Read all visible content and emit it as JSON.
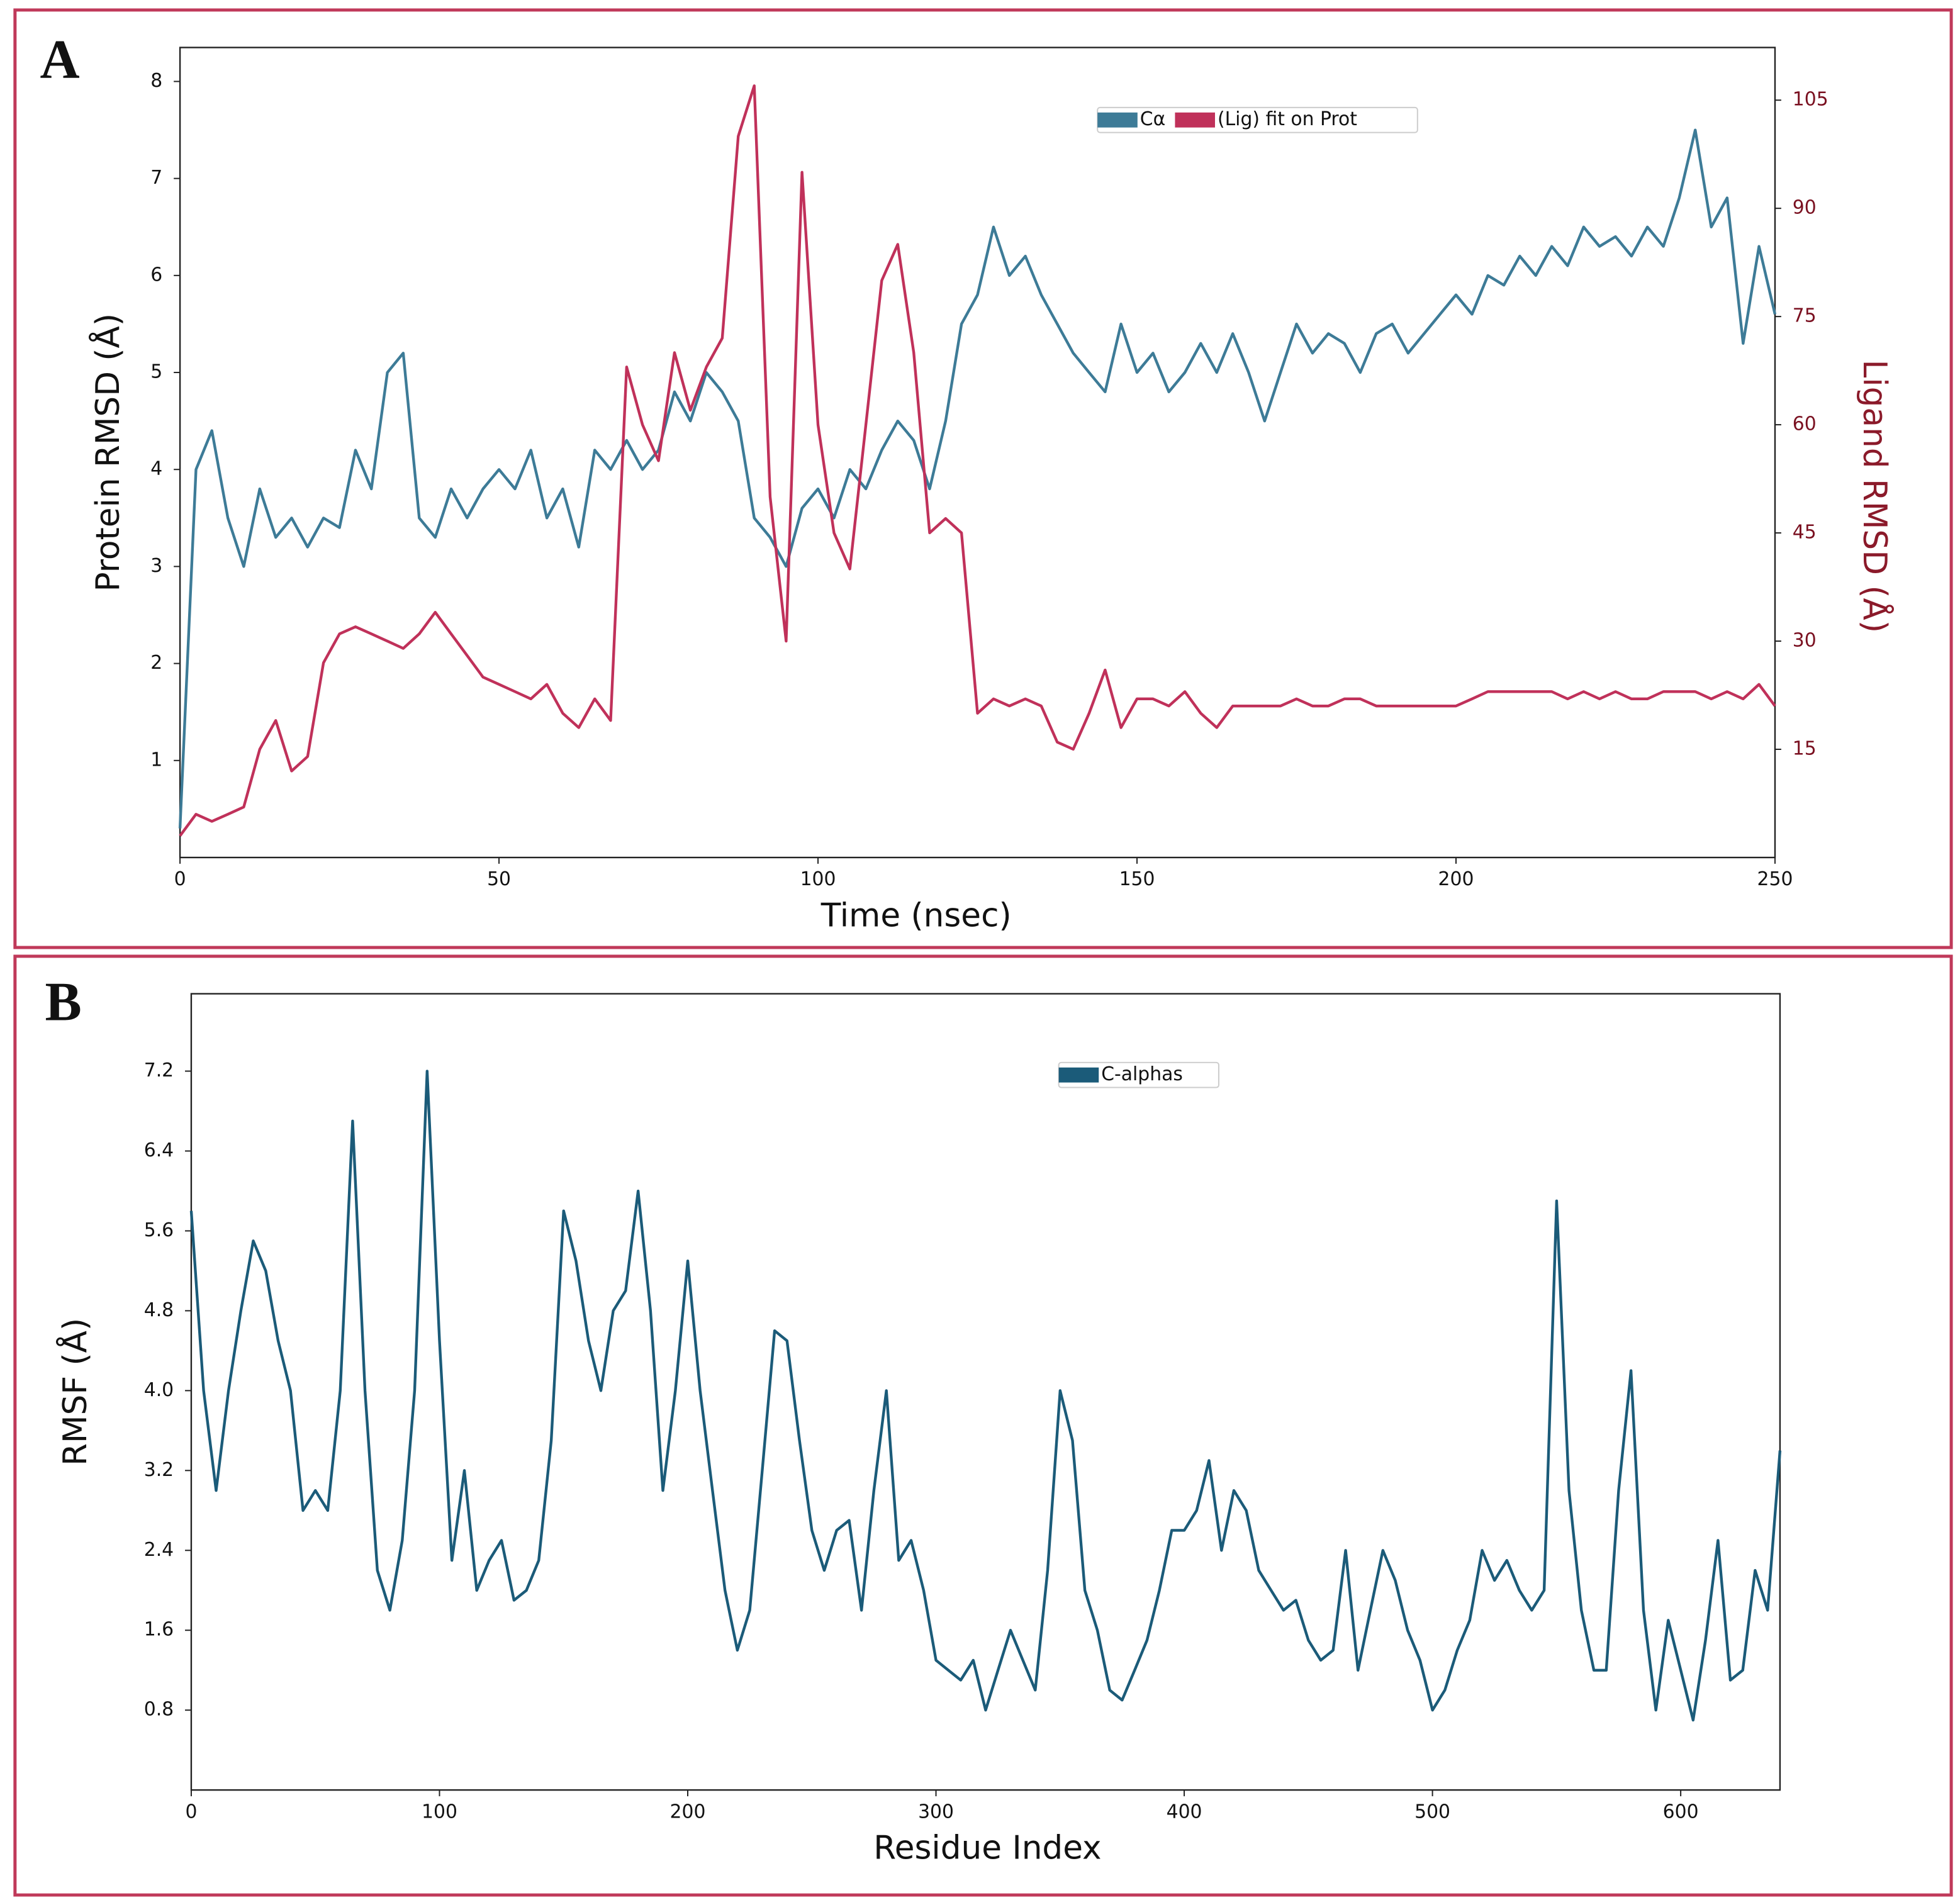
{
  "chart_data": [
    {
      "type": "line",
      "panel": "A",
      "xlabel": "Time (nsec)",
      "ylabel": "Protein RMSD (Å)",
      "y2label": "Ligand RMSD (Å)",
      "xlim": [
        0,
        250
      ],
      "xticks": [
        0,
        50,
        100,
        150,
        200,
        250
      ],
      "ylim": [
        0,
        8.35
      ],
      "yticks": [
        1,
        2,
        3,
        4,
        5,
        6,
        7,
        8
      ],
      "y2lim": [
        0,
        112.3
      ],
      "y2ticks": [
        15,
        30,
        45,
        60,
        75,
        90,
        105
      ],
      "x": [
        0,
        2.5,
        5,
        7.5,
        10,
        12.5,
        15,
        17.5,
        20,
        22.5,
        25,
        27.5,
        30,
        32.5,
        35,
        37.5,
        40,
        42.5,
        45,
        47.5,
        50,
        52.5,
        55,
        57.5,
        60,
        62.5,
        65,
        67.5,
        70,
        72.5,
        75,
        77.5,
        80,
        82.5,
        85,
        87.5,
        90,
        92.5,
        95,
        97.5,
        100,
        102.5,
        105,
        107.5,
        110,
        112.5,
        115,
        117.5,
        120,
        122.5,
        125,
        127.5,
        130,
        132.5,
        135,
        137.5,
        140,
        142.5,
        145,
        147.5,
        150,
        152.5,
        155,
        157.5,
        160,
        162.5,
        165,
        167.5,
        170,
        172.5,
        175,
        177.5,
        180,
        182.5,
        185,
        187.5,
        190,
        192.5,
        195,
        197.5,
        200,
        202.5,
        205,
        207.5,
        210,
        212.5,
        215,
        217.5,
        220,
        222.5,
        225,
        227.5,
        230,
        232.5,
        235,
        237.5,
        240,
        242.5,
        245,
        247.5,
        250
      ],
      "series": [
        {
          "name": "Cα",
          "color": "#3d7b97",
          "values": [
            0.3,
            4.0,
            4.4,
            3.5,
            3.0,
            3.8,
            3.3,
            3.5,
            3.2,
            3.5,
            3.4,
            4.2,
            3.8,
            5.0,
            5.2,
            3.5,
            3.3,
            3.8,
            3.5,
            3.8,
            4.0,
            3.8,
            4.2,
            3.5,
            3.8,
            3.2,
            4.2,
            4.0,
            4.3,
            4.0,
            4.2,
            4.8,
            4.5,
            5.0,
            4.8,
            4.5,
            3.5,
            3.3,
            3.0,
            3.6,
            3.8,
            3.5,
            4.0,
            3.8,
            4.2,
            4.5,
            4.3,
            3.8,
            4.5,
            5.5,
            5.8,
            6.5,
            6.0,
            6.2,
            5.8,
            5.5,
            5.2,
            5.0,
            4.8,
            5.5,
            5.0,
            5.2,
            4.8,
            5.0,
            5.3,
            5.0,
            5.4,
            5.0,
            4.5,
            5.0,
            5.5,
            5.2,
            5.4,
            5.3,
            5.0,
            5.4,
            5.5,
            5.2,
            5.4,
            5.6,
            5.8,
            5.6,
            6.0,
            5.9,
            6.2,
            6.0,
            6.3,
            6.1,
            6.5,
            6.3,
            6.4,
            6.2,
            6.5,
            6.3,
            6.8,
            7.5,
            6.5,
            6.8,
            5.3,
            6.3,
            5.6
          ]
        },
        {
          "name": "(Lig) fit on Prot",
          "color": "#c0315a",
          "axis": "y2",
          "values": [
            3,
            6,
            5,
            6,
            7,
            15,
            19,
            12,
            14,
            27,
            31,
            32,
            31,
            30,
            29,
            31,
            34,
            31,
            28,
            25,
            24,
            23,
            22,
            24,
            20,
            18,
            22,
            19,
            68,
            60,
            55,
            70,
            62,
            68,
            72,
            100,
            107,
            50,
            30,
            95,
            60,
            45,
            40,
            60,
            80,
            85,
            70,
            45,
            47,
            45,
            20,
            22,
            21,
            22,
            21,
            16,
            15,
            20,
            26,
            18,
            22,
            22,
            21,
            23,
            20,
            18,
            21,
            21,
            21,
            21,
            22,
            21,
            21,
            22,
            22,
            21,
            21,
            21,
            21,
            21,
            21,
            22,
            23,
            23,
            23,
            23,
            23,
            22,
            23,
            22,
            23,
            22,
            22,
            23,
            23,
            23,
            22,
            23,
            22,
            24,
            21
          ]
        }
      ]
    },
    {
      "type": "line",
      "panel": "B",
      "xlabel": "Residue Index",
      "ylabel": "RMSF (Å)",
      "xlim": [
        0,
        640
      ],
      "xticks": [
        0,
        100,
        200,
        300,
        400,
        500,
        600
      ],
      "ylim": [
        0,
        7.975
      ],
      "yticks": [
        0.8,
        1.6,
        2.4,
        3.2,
        {
          "value": 4,
          "label": "4.0"
        },
        4.8,
        5.6,
        6.4,
        7.2
      ],
      "x": [
        0,
        5,
        10,
        15,
        20,
        25,
        30,
        35,
        40,
        45,
        50,
        55,
        60,
        65,
        70,
        75,
        80,
        85,
        90,
        95,
        100,
        105,
        110,
        115,
        120,
        125,
        130,
        135,
        140,
        145,
        150,
        155,
        160,
        165,
        170,
        175,
        180,
        185,
        190,
        195,
        200,
        205,
        210,
        215,
        220,
        225,
        230,
        235,
        240,
        245,
        250,
        255,
        260,
        265,
        270,
        275,
        280,
        285,
        290,
        295,
        300,
        305,
        310,
        315,
        320,
        325,
        330,
        335,
        340,
        345,
        350,
        355,
        360,
        365,
        370,
        375,
        380,
        385,
        390,
        395,
        400,
        405,
        410,
        415,
        420,
        425,
        430,
        435,
        440,
        445,
        450,
        455,
        460,
        465,
        470,
        475,
        480,
        485,
        490,
        495,
        500,
        505,
        510,
        515,
        520,
        525,
        530,
        535,
        540,
        545,
        550,
        555,
        560,
        565,
        570,
        575,
        580,
        585,
        590,
        595,
        600,
        605,
        610,
        615,
        620,
        625,
        630,
        635,
        640
      ],
      "series": [
        {
          "name": "C-alphas",
          "color": "#1b5b79",
          "values": [
            5.8,
            4.0,
            3.0,
            4.0,
            4.8,
            5.5,
            5.2,
            4.5,
            4.0,
            2.8,
            3.0,
            2.8,
            4.0,
            6.7,
            4.0,
            2.2,
            1.8,
            2.5,
            4.0,
            7.2,
            4.5,
            2.3,
            3.2,
            2.0,
            2.3,
            2.5,
            1.9,
            2.0,
            2.3,
            3.5,
            5.8,
            5.3,
            4.5,
            4.0,
            4.8,
            5.0,
            6.0,
            4.8,
            3.0,
            4.0,
            5.3,
            4.0,
            3.0,
            2.0,
            1.4,
            1.8,
            3.2,
            4.6,
            4.5,
            3.5,
            2.6,
            2.2,
            2.6,
            2.7,
            1.8,
            3.0,
            4.0,
            2.3,
            2.5,
            2.0,
            1.3,
            1.2,
            1.1,
            1.3,
            0.8,
            1.2,
            1.6,
            1.3,
            1.0,
            2.2,
            4.0,
            3.5,
            2.0,
            1.6,
            1.0,
            0.9,
            1.2,
            1.5,
            2.0,
            2.6,
            2.6,
            2.8,
            3.3,
            2.4,
            3.0,
            2.8,
            2.2,
            2.0,
            1.8,
            1.9,
            1.5,
            1.3,
            1.4,
            2.4,
            1.2,
            1.8,
            2.4,
            2.1,
            1.6,
            1.3,
            0.8,
            1.0,
            1.4,
            1.7,
            2.4,
            2.1,
            2.3,
            2.0,
            1.8,
            2.0,
            5.9,
            3.0,
            1.8,
            1.2,
            1.2,
            3.0,
            4.2,
            1.8,
            0.8,
            1.7,
            1.2,
            0.7,
            1.5,
            2.5,
            1.1,
            1.2,
            2.2,
            1.8,
            3.4
          ]
        }
      ]
    }
  ]
}
